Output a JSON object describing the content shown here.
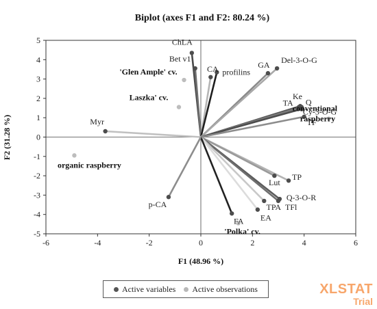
{
  "chart_data": {
    "type": "scatter",
    "title": "Biplot (axes F1 and F2: 80.24 %)",
    "xlabel": "F1 (48.96 %)",
    "ylabel": "F2 (31.28 %)",
    "xlim": [
      -6,
      6
    ],
    "ylim": [
      -5,
      5
    ],
    "xticks": [
      "-6",
      "-4",
      "-2",
      "0",
      "2",
      "4",
      "6"
    ],
    "yticks": [
      "-5",
      "-4",
      "-3",
      "-2",
      "-1",
      "0",
      "1",
      "2",
      "3",
      "4",
      "5"
    ],
    "grid": false,
    "legend_position": "bottom",
    "series": [
      {
        "name": "Active variables",
        "points": [
          {
            "label": "ChLA",
            "x": -0.35,
            "y": 4.35
          },
          {
            "label": "Bet v1",
            "x": -0.22,
            "y": 3.55
          },
          {
            "label": "CA",
            "x": 0.38,
            "y": 3.1
          },
          {
            "label": "profilins",
            "x": 0.62,
            "y": 3.35
          },
          {
            "label": "GA",
            "x": 2.6,
            "y": 3.3
          },
          {
            "label": "Del-3-O-G",
            "x": 2.95,
            "y": 3.55
          },
          {
            "label": "TA",
            "x": 3.8,
            "y": 1.55
          },
          {
            "label": "Ke",
            "x": 3.85,
            "y": 1.6
          },
          {
            "label": "Q",
            "x": 3.9,
            "y": 1.55
          },
          {
            "label": "Cy-3-O-G",
            "x": 3.9,
            "y": 1.45
          },
          {
            "label": "TF",
            "x": 4.0,
            "y": 1.05
          },
          {
            "label": "Myr",
            "x": -3.7,
            "y": 0.3
          },
          {
            "label": "TP",
            "x": 3.4,
            "y": -2.25
          },
          {
            "label": "Lut",
            "x": 2.85,
            "y": -2.0
          },
          {
            "label": "Q-3-O-R",
            "x": 3.05,
            "y": -3.2
          },
          {
            "label": "TFl",
            "x": 3.0,
            "y": -3.3
          },
          {
            "label": "TPA",
            "x": 2.45,
            "y": -3.3
          },
          {
            "label": "EA",
            "x": 2.2,
            "y": -3.75
          },
          {
            "label": "FA",
            "x": 1.2,
            "y": -3.95
          },
          {
            "label": "p-CA",
            "x": -1.25,
            "y": -3.1
          }
        ]
      },
      {
        "name": "Active observations",
        "points": [
          {
            "label": "'Glen Ample' cv.",
            "x": -0.65,
            "y": 2.95
          },
          {
            "label": "Laszka' cv.",
            "x": -0.85,
            "y": 1.55
          },
          {
            "label": "organic raspberry",
            "x": -4.9,
            "y": -0.95
          },
          {
            "label": "conventional raspberry",
            "x": 4.95,
            "y": 0.95
          },
          {
            "label": "'Polka' cv.",
            "x": 1.45,
            "y": -4.45
          }
        ]
      }
    ]
  },
  "colors": {
    "variables": "#555555",
    "observations": "#b8b8b8",
    "watermark": "#f7a66b"
  },
  "watermark": {
    "main": "XLSTAT",
    "sub": "Trial"
  }
}
